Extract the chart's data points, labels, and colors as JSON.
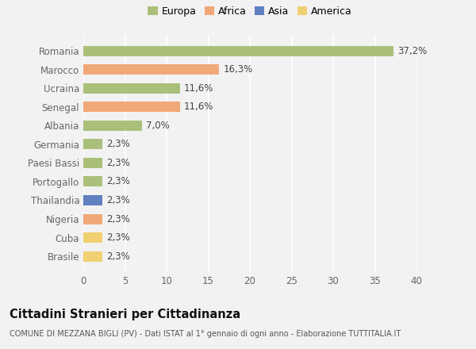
{
  "categories": [
    "Brasile",
    "Cuba",
    "Nigeria",
    "Thailandia",
    "Portogallo",
    "Paesi Bassi",
    "Germania",
    "Albania",
    "Senegal",
    "Ucraina",
    "Marocco",
    "Romania"
  ],
  "values": [
    2.3,
    2.3,
    2.3,
    2.3,
    2.3,
    2.3,
    2.3,
    7.0,
    11.6,
    11.6,
    16.3,
    37.2
  ],
  "colors": [
    "#f0d070",
    "#f0d070",
    "#f0a878",
    "#6080c0",
    "#aac07a",
    "#aac07a",
    "#aac07a",
    "#aac07a",
    "#f0a878",
    "#aac07a",
    "#f0a878",
    "#aac07a"
  ],
  "labels": [
    "2,3%",
    "2,3%",
    "2,3%",
    "2,3%",
    "2,3%",
    "2,3%",
    "2,3%",
    "7,0%",
    "11,6%",
    "11,6%",
    "16,3%",
    "37,2%"
  ],
  "xlim": [
    0,
    40
  ],
  "xticks": [
    0,
    5,
    10,
    15,
    20,
    25,
    30,
    35,
    40
  ],
  "legend_labels": [
    "Europa",
    "Africa",
    "Asia",
    "America"
  ],
  "legend_colors": [
    "#aac07a",
    "#f0a878",
    "#6080c0",
    "#f0d070"
  ],
  "title": "Cittadini Stranieri per Cittadinanza",
  "subtitle": "COMUNE DI MEZZANA BIGLI (PV) - Dati ISTAT al 1° gennaio di ogni anno - Elaborazione TUTTITALIA.IT",
  "background_color": "#f2f2f2",
  "bar_height": 0.55,
  "grid_color": "#ffffff",
  "label_fontsize": 8.5,
  "tick_fontsize": 8.5,
  "title_fontsize": 10.5,
  "subtitle_fontsize": 7
}
